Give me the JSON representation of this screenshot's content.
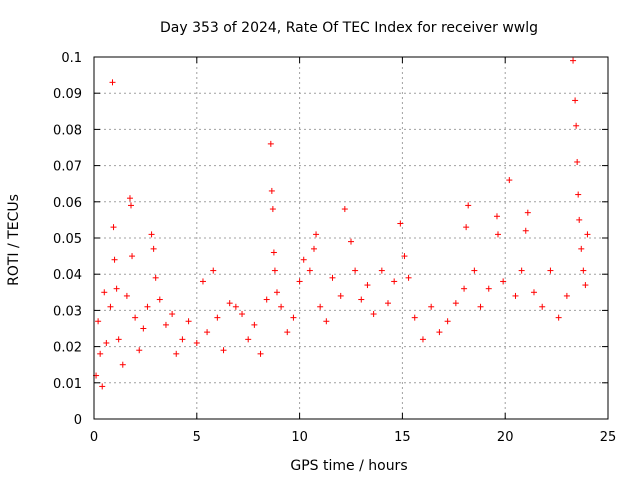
{
  "chart_data": {
    "type": "scatter",
    "title": "Day 353 of 2024, Rate Of TEC Index for receiver wwlg",
    "xlabel": "GPS time / hours",
    "ylabel": "ROTI / TECUs",
    "xlim": [
      0,
      25
    ],
    "ylim": [
      0,
      0.1
    ],
    "grid": true,
    "marker": "+",
    "series_color": "#ff0000",
    "x_ticks": [
      {
        "value": 0,
        "label": "0"
      },
      {
        "value": 5,
        "label": "5"
      },
      {
        "value": 10,
        "label": "10"
      },
      {
        "value": 15,
        "label": "15"
      },
      {
        "value": 20,
        "label": "20"
      },
      {
        "value": 25,
        "label": "25"
      }
    ],
    "y_ticks": [
      {
        "value": 0,
        "label": "0"
      },
      {
        "value": 0.01,
        "label": "0.01"
      },
      {
        "value": 0.02,
        "label": "0.02"
      },
      {
        "value": 0.03,
        "label": "0.03"
      },
      {
        "value": 0.04,
        "label": "0.04"
      },
      {
        "value": 0.05,
        "label": "0.05"
      },
      {
        "value": 0.06,
        "label": "0.06"
      },
      {
        "value": 0.07,
        "label": "0.07"
      },
      {
        "value": 0.08,
        "label": "0.08"
      },
      {
        "value": 0.09,
        "label": "0.09"
      },
      {
        "value": 0.1,
        "label": "0.1"
      }
    ],
    "points": [
      [
        0.1,
        0.012
      ],
      [
        0.2,
        0.027
      ],
      [
        0.3,
        0.018
      ],
      [
        0.4,
        0.009
      ],
      [
        0.5,
        0.035
      ],
      [
        0.6,
        0.021
      ],
      [
        0.8,
        0.031
      ],
      [
        0.9,
        0.093
      ],
      [
        0.95,
        0.053
      ],
      [
        1.0,
        0.044
      ],
      [
        1.1,
        0.036
      ],
      [
        1.2,
        0.022
      ],
      [
        1.4,
        0.015
      ],
      [
        1.6,
        0.034
      ],
      [
        1.75,
        0.061
      ],
      [
        1.8,
        0.059
      ],
      [
        1.85,
        0.045
      ],
      [
        2.0,
        0.028
      ],
      [
        2.2,
        0.019
      ],
      [
        2.4,
        0.025
      ],
      [
        2.6,
        0.031
      ],
      [
        2.8,
        0.051
      ],
      [
        2.9,
        0.047
      ],
      [
        3.0,
        0.039
      ],
      [
        3.2,
        0.033
      ],
      [
        3.5,
        0.026
      ],
      [
        3.8,
        0.029
      ],
      [
        4.0,
        0.018
      ],
      [
        4.3,
        0.022
      ],
      [
        4.6,
        0.027
      ],
      [
        5.0,
        0.021
      ],
      [
        5.3,
        0.038
      ],
      [
        5.5,
        0.024
      ],
      [
        5.8,
        0.041
      ],
      [
        6.0,
        0.028
      ],
      [
        6.3,
        0.019
      ],
      [
        6.6,
        0.032
      ],
      [
        6.9,
        0.031
      ],
      [
        7.2,
        0.029
      ],
      [
        7.5,
        0.022
      ],
      [
        7.8,
        0.026
      ],
      [
        8.1,
        0.018
      ],
      [
        8.4,
        0.033
      ],
      [
        8.6,
        0.076
      ],
      [
        8.65,
        0.063
      ],
      [
        8.7,
        0.058
      ],
      [
        8.75,
        0.046
      ],
      [
        8.8,
        0.041
      ],
      [
        8.9,
        0.035
      ],
      [
        9.1,
        0.031
      ],
      [
        9.4,
        0.024
      ],
      [
        9.7,
        0.028
      ],
      [
        10.0,
        0.038
      ],
      [
        10.2,
        0.044
      ],
      [
        10.5,
        0.041
      ],
      [
        10.7,
        0.047
      ],
      [
        10.8,
        0.051
      ],
      [
        11.0,
        0.031
      ],
      [
        11.3,
        0.027
      ],
      [
        11.6,
        0.039
      ],
      [
        12.0,
        0.034
      ],
      [
        12.2,
        0.058
      ],
      [
        12.5,
        0.049
      ],
      [
        12.7,
        0.041
      ],
      [
        13.0,
        0.033
      ],
      [
        13.3,
        0.037
      ],
      [
        13.6,
        0.029
      ],
      [
        14.0,
        0.041
      ],
      [
        14.3,
        0.032
      ],
      [
        14.6,
        0.038
      ],
      [
        14.9,
        0.054
      ],
      [
        15.1,
        0.045
      ],
      [
        15.3,
        0.039
      ],
      [
        15.6,
        0.028
      ],
      [
        16.0,
        0.022
      ],
      [
        16.4,
        0.031
      ],
      [
        16.8,
        0.024
      ],
      [
        17.2,
        0.027
      ],
      [
        17.6,
        0.032
      ],
      [
        18.0,
        0.036
      ],
      [
        18.1,
        0.053
      ],
      [
        18.2,
        0.059
      ],
      [
        18.5,
        0.041
      ],
      [
        18.8,
        0.031
      ],
      [
        19.2,
        0.036
      ],
      [
        19.6,
        0.056
      ],
      [
        19.65,
        0.051
      ],
      [
        19.9,
        0.038
      ],
      [
        20.2,
        0.066
      ],
      [
        20.5,
        0.034
      ],
      [
        20.8,
        0.041
      ],
      [
        21.0,
        0.052
      ],
      [
        21.1,
        0.057
      ],
      [
        21.4,
        0.035
      ],
      [
        21.8,
        0.031
      ],
      [
        22.2,
        0.041
      ],
      [
        22.6,
        0.028
      ],
      [
        23.0,
        0.034
      ],
      [
        23.3,
        0.099
      ],
      [
        23.4,
        0.088
      ],
      [
        23.45,
        0.081
      ],
      [
        23.5,
        0.071
      ],
      [
        23.55,
        0.062
      ],
      [
        23.6,
        0.055
      ],
      [
        23.7,
        0.047
      ],
      [
        23.8,
        0.041
      ],
      [
        23.9,
        0.037
      ],
      [
        24.0,
        0.051
      ]
    ]
  }
}
